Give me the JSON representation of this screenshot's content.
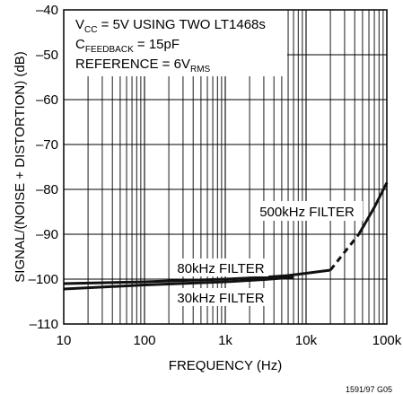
{
  "chart_data": {
    "type": "line",
    "title": "",
    "xlabel": "FREQUENCY (Hz)",
    "ylabel": "SIGNAL/(NOISE + DISTORTION) (dB)",
    "x_scale": "log",
    "xlim": [
      10,
      100000
    ],
    "ylim": [
      -110,
      -40
    ],
    "grid": true,
    "x_ticks": [
      {
        "value": 10,
        "label": "10"
      },
      {
        "value": 100,
        "label": "100"
      },
      {
        "value": 1000,
        "label": "1k"
      },
      {
        "value": 10000,
        "label": "10k"
      },
      {
        "value": 100000,
        "label": "100k"
      }
    ],
    "y_ticks": [
      {
        "value": -40,
        "label": "–40"
      },
      {
        "value": -50,
        "label": "–50"
      },
      {
        "value": -60,
        "label": "–60"
      },
      {
        "value": -70,
        "label": "–70"
      },
      {
        "value": -80,
        "label": "–80"
      },
      {
        "value": -90,
        "label": "–90"
      },
      {
        "value": -100,
        "label": "–100"
      },
      {
        "value": -110,
        "label": "–110"
      }
    ],
    "series": [
      {
        "name": "80kHz FILTER",
        "x": [
          10,
          100,
          1000,
          3000,
          6000,
          10000,
          20000
        ],
        "y": [
          -101,
          -100.6,
          -100,
          -99.6,
          -99.2,
          -98.7,
          -98
        ]
      },
      {
        "name": "30kHz FILTER",
        "x": [
          10,
          100,
          1000,
          3000,
          7000
        ],
        "y": [
          -102.2,
          -101.3,
          -100.6,
          -100.1,
          -99.6
        ]
      },
      {
        "name": "500kHz FILTER",
        "segments": [
          {
            "dashed": true,
            "x": [
              20000,
              30000,
              45000
            ],
            "y": [
              -98,
              -94,
              -90
            ]
          },
          {
            "dashed": false,
            "x": [
              45000,
              70000,
              100000
            ],
            "y": [
              -90,
              -84,
              -78.5
            ]
          }
        ]
      }
    ],
    "annotations": {
      "vcc": {
        "main": "V",
        "sub": "CC",
        "rest": " = 5V USING TWO LT1468s"
      },
      "cfb": {
        "main": "C",
        "sub": "FEEDBACK",
        "rest": " = 15pF"
      },
      "ref": {
        "main": "REFERENCE = 6V",
        "sub": "RMS"
      }
    },
    "figure_code": "1591/97 G05",
    "colors": {
      "axis": "#000000",
      "grid": "#000000",
      "line": "#111111"
    }
  }
}
